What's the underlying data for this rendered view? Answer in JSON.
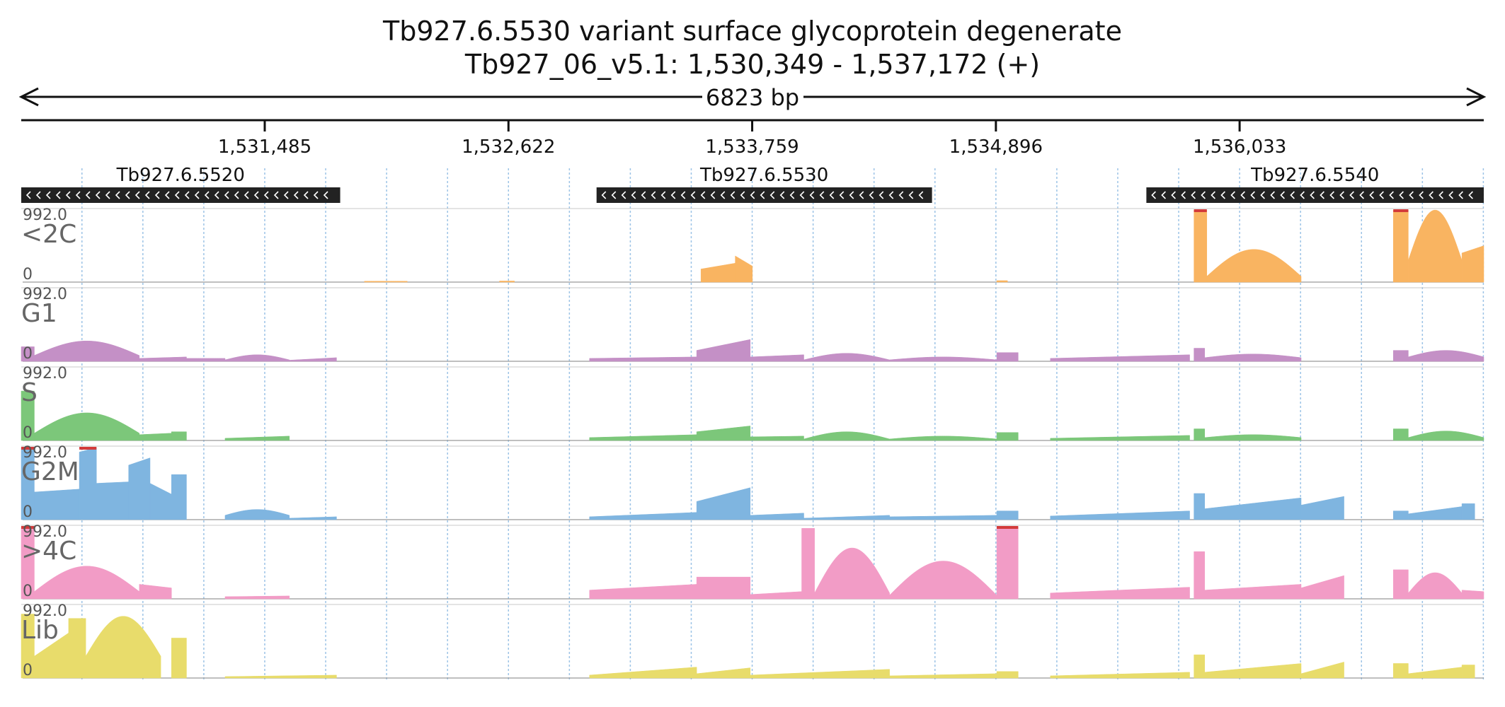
{
  "title": {
    "line1": "Tb927.6.5530  variant surface glycoprotein  degenerate",
    "line2": "Tb927_06_v5.1: 1,530,349 - 1,537,172 (+)"
  },
  "scale_bar_label": "6823 bp",
  "colors": {
    "<2C": "#f9b461",
    "G1": "#c490c6",
    "S": "#7cc77a",
    "G2M": "#7fb5e0",
    ">4C": "#f29cc6",
    "Lib": "#e8dc6b",
    "clip": "#d33b3b",
    "gene": "#222222",
    "grid": "#9cc3e6"
  },
  "chart_data": {
    "type": "area",
    "xlim": [
      1530349,
      1537172
    ],
    "ylim": [
      0,
      992.0
    ],
    "ymax_label": "992.0",
    "ymin_label": "0",
    "axis_ticks": [
      1531485,
      1532622,
      1533759,
      1534896,
      1536033
    ],
    "tick_labels": [
      "1,531,485",
      "1,532,622",
      "1,533,759",
      "1,534,896",
      "1,536,033"
    ],
    "genes": [
      {
        "name": "Tb927.6.5520",
        "start": 1530349,
        "end": 1531837,
        "strand": "-"
      },
      {
        "name": "Tb927.6.5530",
        "start": 1533033,
        "end": 1534598,
        "strand": "-"
      },
      {
        "name": "Tb927.6.5540",
        "start": 1535598,
        "end": 1537172,
        "strand": "-"
      }
    ],
    "tracks": [
      {
        "name": "<2C",
        "segments": [
          [
            1531950,
            1532150,
            12,
            12
          ],
          [
            1532580,
            1532650,
            15,
            15
          ],
          [
            1533520,
            1533680,
            180,
            260
          ],
          [
            1533680,
            1533760,
            360,
            220
          ],
          [
            1534900,
            1534950,
            20,
            20
          ],
          [
            1535820,
            1535880,
            992,
            992,
            "clip"
          ],
          [
            1535880,
            1536320,
            80,
            450,
            "bell"
          ],
          [
            1536750,
            1536820,
            992,
            992,
            "clip"
          ],
          [
            1536820,
            1537070,
            300,
            992,
            "bell"
          ],
          [
            1537070,
            1537172,
            400,
            500
          ]
        ]
      },
      {
        "name": "G1",
        "segments": [
          [
            1530349,
            1530410,
            200,
            200
          ],
          [
            1530410,
            1530900,
            80,
            280,
            "bell"
          ],
          [
            1530900,
            1531120,
            40,
            60
          ],
          [
            1531120,
            1531300,
            40,
            40
          ],
          [
            1531300,
            1531600,
            20,
            90,
            "bell"
          ],
          [
            1531600,
            1531820,
            15,
            50
          ],
          [
            1533000,
            1533500,
            40,
            60
          ],
          [
            1533500,
            1533750,
            150,
            300
          ],
          [
            1533750,
            1534000,
            60,
            90
          ],
          [
            1534000,
            1534400,
            20,
            110,
            "bell"
          ],
          [
            1534400,
            1534900,
            20,
            60,
            "bell"
          ],
          [
            1534900,
            1535000,
            120,
            120
          ],
          [
            1535150,
            1535800,
            40,
            90
          ],
          [
            1535820,
            1535870,
            180,
            180
          ],
          [
            1535870,
            1536320,
            50,
            100,
            "bell"
          ],
          [
            1536750,
            1536820,
            150,
            150
          ],
          [
            1536820,
            1537172,
            60,
            150,
            "bell"
          ]
        ]
      },
      {
        "name": "S",
        "segments": [
          [
            1530349,
            1530410,
            680,
            680
          ],
          [
            1530410,
            1530900,
            100,
            380,
            "bell"
          ],
          [
            1530900,
            1531050,
            80,
            100
          ],
          [
            1531050,
            1531120,
            120,
            120
          ],
          [
            1531300,
            1531600,
            30,
            60
          ],
          [
            1533000,
            1533500,
            40,
            80
          ],
          [
            1533500,
            1533750,
            120,
            200
          ],
          [
            1533750,
            1534000,
            50,
            60
          ],
          [
            1534000,
            1534400,
            20,
            120,
            "bell"
          ],
          [
            1534400,
            1534900,
            20,
            60,
            "bell"
          ],
          [
            1534900,
            1535000,
            110,
            110
          ],
          [
            1535150,
            1535800,
            30,
            70
          ],
          [
            1535820,
            1535870,
            160,
            160
          ],
          [
            1535870,
            1536320,
            40,
            80,
            "bell"
          ],
          [
            1536750,
            1536820,
            160,
            160
          ],
          [
            1536820,
            1537172,
            40,
            130,
            "bell"
          ]
        ]
      },
      {
        "name": "G2M",
        "segments": [
          [
            1530349,
            1530410,
            992,
            992,
            "clip"
          ],
          [
            1530410,
            1530620,
            380,
            420
          ],
          [
            1530620,
            1530700,
            930,
            992,
            "clip"
          ],
          [
            1530700,
            1530850,
            500,
            520
          ],
          [
            1530850,
            1530950,
            750,
            850
          ],
          [
            1530950,
            1531050,
            500,
            350
          ],
          [
            1531050,
            1531120,
            620,
            620
          ],
          [
            1531300,
            1531600,
            60,
            140,
            "bell"
          ],
          [
            1531600,
            1531820,
            20,
            40
          ],
          [
            1533000,
            1533500,
            40,
            100
          ],
          [
            1533500,
            1533750,
            250,
            440
          ],
          [
            1533750,
            1534000,
            60,
            90
          ],
          [
            1534000,
            1534400,
            20,
            60
          ],
          [
            1534400,
            1534900,
            40,
            60
          ],
          [
            1534900,
            1535000,
            120,
            120
          ],
          [
            1535150,
            1535800,
            50,
            120
          ],
          [
            1535820,
            1535870,
            360,
            360
          ],
          [
            1535870,
            1536320,
            150,
            300
          ],
          [
            1536320,
            1536520,
            200,
            320
          ],
          [
            1536750,
            1536820,
            120,
            120
          ],
          [
            1536820,
            1537070,
            80,
            180
          ],
          [
            1537070,
            1537130,
            220,
            220
          ]
        ]
      },
      {
        "name": ">4C",
        "segments": [
          [
            1530349,
            1530410,
            992,
            992,
            "clip"
          ],
          [
            1530410,
            1530900,
            100,
            450,
            "bell"
          ],
          [
            1530900,
            1531050,
            200,
            150
          ],
          [
            1531300,
            1531600,
            30,
            40
          ],
          [
            1533000,
            1533500,
            120,
            200
          ],
          [
            1533500,
            1533750,
            300,
            300
          ],
          [
            1533750,
            1533990,
            60,
            100
          ],
          [
            1533990,
            1534050,
            970,
            970
          ],
          [
            1534050,
            1534400,
            80,
            700,
            "bell"
          ],
          [
            1534400,
            1534900,
            50,
            520,
            "bell"
          ],
          [
            1534900,
            1535000,
            992,
            992,
            "clip"
          ],
          [
            1535150,
            1535800,
            80,
            160
          ],
          [
            1535820,
            1535870,
            650,
            650
          ],
          [
            1535870,
            1536320,
            120,
            200
          ],
          [
            1536320,
            1536520,
            150,
            320
          ],
          [
            1536750,
            1536820,
            400,
            400
          ],
          [
            1536820,
            1537070,
            80,
            360,
            "bell"
          ],
          [
            1537070,
            1537172,
            120,
            100
          ]
        ]
      },
      {
        "name": "Lib",
        "segments": [
          [
            1530349,
            1530410,
            880,
            880
          ],
          [
            1530410,
            1530570,
            300,
            620
          ],
          [
            1530570,
            1530650,
            820,
            820
          ],
          [
            1530650,
            1531000,
            300,
            850,
            "bell"
          ],
          [
            1531050,
            1531120,
            550,
            550
          ],
          [
            1531300,
            1531820,
            20,
            40
          ],
          [
            1533000,
            1533500,
            40,
            150
          ],
          [
            1533500,
            1533750,
            60,
            140
          ],
          [
            1533750,
            1534400,
            40,
            120
          ],
          [
            1534400,
            1534900,
            30,
            60
          ],
          [
            1534900,
            1535000,
            90,
            90
          ],
          [
            1535150,
            1535800,
            30,
            80
          ],
          [
            1535820,
            1535870,
            320,
            320
          ],
          [
            1535870,
            1536320,
            80,
            200
          ],
          [
            1536320,
            1536520,
            60,
            220
          ],
          [
            1536750,
            1536820,
            200,
            200
          ],
          [
            1536820,
            1537070,
            60,
            150
          ],
          [
            1537070,
            1537130,
            180,
            180
          ]
        ]
      }
    ]
  }
}
